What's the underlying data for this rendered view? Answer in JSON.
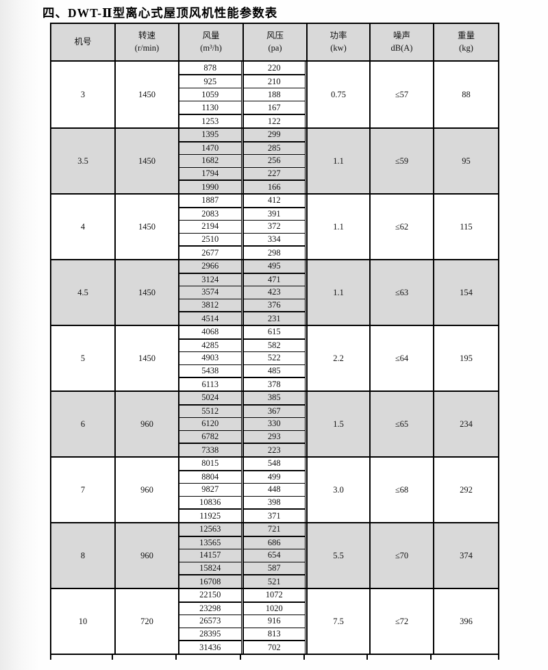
{
  "title": "四、DWT-Ⅱ型离心式屋顶风机性能参数表",
  "table": {
    "headers": [
      {
        "line1": "机号",
        "line2": ""
      },
      {
        "line1": "转速",
        "line2": "(r/min)"
      },
      {
        "line1": "风量",
        "line2": "(m³/h)"
      },
      {
        "line1": "风压",
        "line2": "(pa)"
      },
      {
        "line1": "功率",
        "line2": "(kw)"
      },
      {
        "line1": "噪声",
        "line2": "dB(A)"
      },
      {
        "line1": "重量",
        "line2": "(kg)"
      }
    ],
    "groups": [
      {
        "model": "3",
        "speed": "1450",
        "flow": [
          "878",
          "925",
          "1059",
          "1130",
          "1253"
        ],
        "pressure": [
          "220",
          "210",
          "188",
          "167",
          "122"
        ],
        "power": "0.75",
        "noise": "≤57",
        "weight": "88",
        "shaded": false
      },
      {
        "model": "3.5",
        "speed": "1450",
        "flow": [
          "1395",
          "1470",
          "1682",
          "1794",
          "1990"
        ],
        "pressure": [
          "299",
          "285",
          "256",
          "227",
          "166"
        ],
        "power": "1.1",
        "noise": "≤59",
        "weight": "95",
        "shaded": true
      },
      {
        "model": "4",
        "speed": "1450",
        "flow": [
          "1887",
          "2083",
          "2194",
          "2510",
          "2677"
        ],
        "pressure": [
          "412",
          "391",
          "372",
          "334",
          "298"
        ],
        "power": "1.1",
        "noise": "≤62",
        "weight": "115",
        "shaded": false
      },
      {
        "model": "4.5",
        "speed": "1450",
        "flow": [
          "2966",
          "3124",
          "3574",
          "3812",
          "4514"
        ],
        "pressure": [
          "495",
          "471",
          "423",
          "376",
          "231"
        ],
        "power": "1.1",
        "noise": "≤63",
        "weight": "154",
        "shaded": true
      },
      {
        "model": "5",
        "speed": "1450",
        "flow": [
          "4068",
          "4285",
          "4903",
          "5438",
          "6113"
        ],
        "pressure": [
          "615",
          "582",
          "522",
          "485",
          "378"
        ],
        "power": "2.2",
        "noise": "≤64",
        "weight": "195",
        "shaded": false
      },
      {
        "model": "6",
        "speed": "960",
        "flow": [
          "5024",
          "5512",
          "6120",
          "6782",
          "7338"
        ],
        "pressure": [
          "385",
          "367",
          "330",
          "293",
          "223"
        ],
        "power": "1.5",
        "noise": "≤65",
        "weight": "234",
        "shaded": true
      },
      {
        "model": "7",
        "speed": "960",
        "flow": [
          "8015",
          "8804",
          "9827",
          "10836",
          "11925"
        ],
        "pressure": [
          "548",
          "499",
          "448",
          "398",
          "371"
        ],
        "power": "3.0",
        "noise": "≤68",
        "weight": "292",
        "shaded": false
      },
      {
        "model": "8",
        "speed": "960",
        "flow": [
          "12563",
          "13565",
          "14157",
          "15824",
          "16708"
        ],
        "pressure": [
          "721",
          "686",
          "654",
          "587",
          "521"
        ],
        "power": "5.5",
        "noise": "≤70",
        "weight": "374",
        "shaded": true
      },
      {
        "model": "10",
        "speed": "720",
        "flow": [
          "22150",
          "23298",
          "26573",
          "28395",
          "31436"
        ],
        "pressure": [
          "1072",
          "1020",
          "916",
          "813",
          "702"
        ],
        "power": "7.5",
        "noise": "≤72",
        "weight": "396",
        "shaded": false
      }
    ]
  },
  "colors": {
    "header_bg": "#d9d9d9",
    "shaded_row_bg": "#d9d9d9",
    "border": "#000000",
    "text": "#111111"
  }
}
